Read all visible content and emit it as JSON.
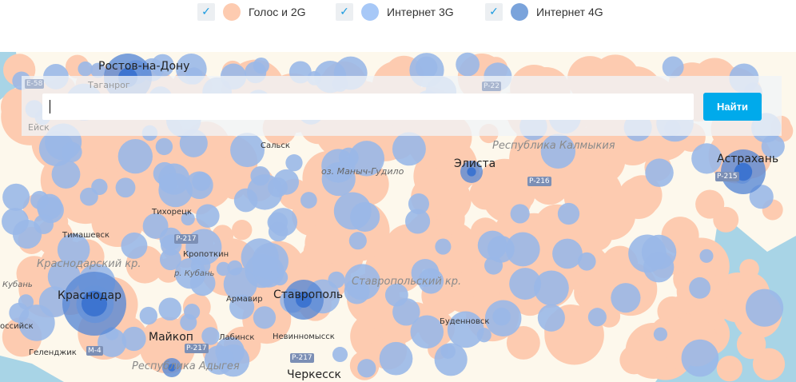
{
  "legend": {
    "items": [
      {
        "label": "Голос и 2G",
        "checked": true,
        "color": "#fdcbb0"
      },
      {
        "label": "Интернет 3G",
        "checked": true,
        "color": "#a7c8f7"
      },
      {
        "label": "Интернет 4G",
        "checked": true,
        "color": "#7aa3db"
      }
    ],
    "check_icon": "✓"
  },
  "search": {
    "value": "",
    "button_label": "Найти"
  },
  "map": {
    "colors": {
      "land": "#fdf8ec",
      "sea": "#a8d4e6",
      "voice_2g": "#fdcbb0",
      "internet_3g": "#9ab8e8",
      "internet_4g": "#5a8ad6",
      "city_core": "#3d74d0"
    },
    "cities": {
      "rostov": "Ростов-на-Дону",
      "taganrog": "Таганрог",
      "yeysk": "Ейск",
      "salsk": "Сальск",
      "elista": "Элиста",
      "astrakhan": "Астрахань",
      "tikhoretsk": "Тихорецк",
      "timashevsk": "Тимашевск",
      "kropotkin": "Кропоткин",
      "krasnodar": "Краснодар",
      "armavir": "Армавир",
      "stavropol": "Ставрополь",
      "budennovsk": "Буденновск",
      "maykop": "Майкоп",
      "labinsk": "Лабинск",
      "nevinnomyssk": "Невинномысск",
      "gelendzhik": "Геленджик",
      "novorossiysk": "оссийск",
      "cherkessk": "Черкесск"
    },
    "regions": {
      "kalmykia": "Республика Калмыкия",
      "krasnodar_kr": "Краснодарский кр.",
      "stavropol_kr": "Ставропольский кр.",
      "adygea": "Республика Адыгея",
      "manych": "оз. Маныч-Гудило",
      "kuban": "р. Кубань",
      "kuban2": "Кубань"
    },
    "roads": {
      "e58": "E-58",
      "p22": "P-22",
      "p216": "P-216",
      "p215": "P-215",
      "p217a": "P-217",
      "p217b": "P-217",
      "p217c": "P-217",
      "m4": "M-4"
    }
  }
}
